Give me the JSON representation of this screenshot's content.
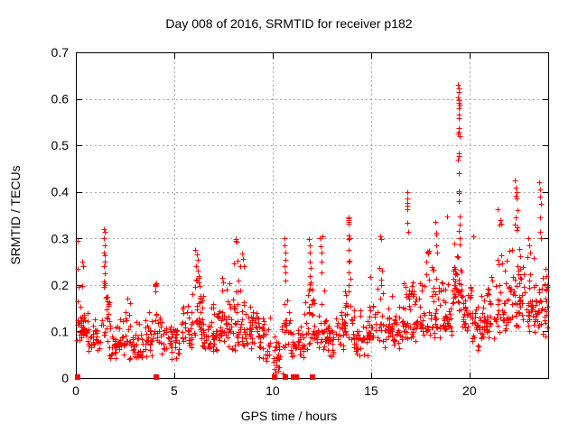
{
  "chart_data": {
    "type": "scatter",
    "title": "Day 008 of 2016, SRMTID for receiver p182",
    "xlabel": "GPS time / hours",
    "ylabel": "SRMTID / TECUs",
    "xlim": [
      0,
      24
    ],
    "ylim": [
      0,
      0.7
    ],
    "xticks": [
      0,
      5,
      10,
      15,
      20
    ],
    "xtick_labels": [
      "0",
      "5",
      "10",
      "15",
      "20"
    ],
    "yticks": [
      0,
      0.1,
      0.2,
      0.3,
      0.4,
      0.5,
      0.6,
      0.7
    ],
    "ytick_labels": [
      "0",
      "0.1",
      "0.2",
      "0.3",
      "0.4",
      "0.5",
      "0.6",
      "0.7"
    ],
    "grid": true,
    "legend": false,
    "marker": "plus",
    "zero_marker": "filled-square",
    "colors": {
      "marker": "#ff0000",
      "grid": "#a8a8a8",
      "border": "#000000",
      "background": "#ffffff"
    },
    "seed": 20160108,
    "band_segments": [
      [
        0.03,
        0.6,
        40,
        0.07,
        0.175,
        0.11
      ],
      [
        0.6,
        1.3,
        30,
        0.045,
        0.13,
        0.08
      ],
      [
        1.3,
        1.7,
        20,
        0.06,
        0.19,
        0.11
      ],
      [
        1.7,
        2.2,
        28,
        0.035,
        0.12,
        0.07
      ],
      [
        2.2,
        3.0,
        40,
        0.035,
        0.165,
        0.08
      ],
      [
        3.0,
        3.6,
        30,
        0.03,
        0.13,
        0.07
      ],
      [
        3.6,
        4.3,
        34,
        0.04,
        0.16,
        0.09
      ],
      [
        4.3,
        5.3,
        44,
        0.03,
        0.135,
        0.075
      ],
      [
        5.3,
        5.9,
        30,
        0.045,
        0.16,
        0.09
      ],
      [
        5.9,
        6.5,
        40,
        0.06,
        0.245,
        0.13
      ],
      [
        6.5,
        7.2,
        40,
        0.045,
        0.165,
        0.09
      ],
      [
        7.2,
        7.7,
        30,
        0.06,
        0.21,
        0.11
      ],
      [
        7.7,
        8.4,
        40,
        0.05,
        0.245,
        0.11
      ],
      [
        8.4,
        9.3,
        52,
        0.05,
        0.18,
        0.1
      ],
      [
        9.3,
        9.9,
        30,
        0.03,
        0.14,
        0.075
      ],
      [
        9.9,
        10.45,
        18,
        0.012,
        0.1,
        0.045
      ],
      [
        10.45,
        10.9,
        24,
        0.04,
        0.21,
        0.1
      ],
      [
        10.9,
        11.6,
        32,
        0.03,
        0.125,
        0.07
      ],
      [
        11.6,
        12.1,
        28,
        0.05,
        0.22,
        0.11
      ],
      [
        12.1,
        12.7,
        32,
        0.05,
        0.2,
        0.1
      ],
      [
        12.7,
        13.4,
        36,
        0.04,
        0.165,
        0.09
      ],
      [
        13.4,
        14.05,
        36,
        0.06,
        0.25,
        0.12
      ],
      [
        14.05,
        14.9,
        44,
        0.04,
        0.155,
        0.085
      ],
      [
        14.9,
        15.6,
        36,
        0.06,
        0.235,
        0.11
      ],
      [
        15.6,
        16.5,
        48,
        0.055,
        0.185,
        0.105
      ],
      [
        16.5,
        17.1,
        34,
        0.07,
        0.23,
        0.12
      ],
      [
        17.1,
        17.9,
        44,
        0.07,
        0.23,
        0.12
      ],
      [
        17.9,
        18.7,
        44,
        0.08,
        0.26,
        0.13
      ],
      [
        18.7,
        19.1,
        24,
        0.08,
        0.24,
        0.13
      ],
      [
        19.1,
        19.65,
        40,
        0.13,
        0.3,
        0.19
      ],
      [
        19.65,
        20.1,
        28,
        0.08,
        0.22,
        0.14
      ],
      [
        20.1,
        20.7,
        34,
        0.05,
        0.19,
        0.11
      ],
      [
        20.7,
        21.4,
        40,
        0.08,
        0.24,
        0.13
      ],
      [
        21.4,
        22.0,
        38,
        0.09,
        0.28,
        0.15
      ],
      [
        22.0,
        22.7,
        44,
        0.1,
        0.3,
        0.17
      ],
      [
        22.7,
        23.4,
        40,
        0.09,
        0.28,
        0.15
      ],
      [
        23.4,
        23.98,
        34,
        0.08,
        0.235,
        0.14
      ]
    ],
    "feature_points": [
      [
        0.07,
        0.295
      ],
      [
        0.1,
        0.235
      ],
      [
        0.16,
        0.195
      ],
      [
        0.3,
        0.198
      ],
      [
        0.33,
        0.25
      ],
      [
        0.36,
        0.24
      ],
      [
        1.42,
        0.32
      ],
      [
        1.45,
        0.315
      ],
      [
        1.44,
        0.3
      ],
      [
        1.46,
        0.285
      ],
      [
        1.43,
        0.27
      ],
      [
        1.45,
        0.263
      ],
      [
        1.47,
        0.25
      ],
      [
        1.44,
        0.24
      ],
      [
        1.46,
        0.225
      ],
      [
        1.43,
        0.207
      ],
      [
        1.45,
        0.2
      ],
      [
        1.44,
        0.196
      ],
      [
        1.46,
        0.203
      ],
      [
        2.6,
        0.17
      ],
      [
        2.75,
        0.16
      ],
      [
        4.02,
        0.2
      ],
      [
        4.05,
        0.201
      ],
      [
        4.04,
        0.197
      ],
      [
        4.07,
        0.203
      ],
      [
        4.05,
        0.186
      ],
      [
        6.08,
        0.275
      ],
      [
        6.15,
        0.265
      ],
      [
        6.2,
        0.254
      ],
      [
        6.12,
        0.24
      ],
      [
        6.18,
        0.23
      ],
      [
        6.26,
        0.22
      ],
      [
        6.1,
        0.212
      ],
      [
        6.22,
        0.205
      ],
      [
        7.45,
        0.215
      ],
      [
        7.5,
        0.205
      ],
      [
        8.1,
        0.295
      ],
      [
        8.14,
        0.298
      ],
      [
        8.17,
        0.292
      ],
      [
        8.2,
        0.252
      ],
      [
        8.05,
        0.246
      ],
      [
        8.45,
        0.268
      ],
      [
        8.5,
        0.255
      ],
      [
        8.55,
        0.24
      ],
      [
        10.05,
        0.035
      ],
      [
        10.1,
        0.02
      ],
      [
        10.15,
        0.012
      ],
      [
        10.2,
        0.028
      ],
      [
        10.26,
        0.05
      ],
      [
        10.3,
        0.015
      ],
      [
        10.5,
        0.01
      ],
      [
        10.58,
        0.3
      ],
      [
        10.62,
        0.285
      ],
      [
        10.65,
        0.27
      ],
      [
        10.63,
        0.254
      ],
      [
        10.6,
        0.24
      ],
      [
        10.66,
        0.226
      ],
      [
        10.64,
        0.21
      ],
      [
        11.85,
        0.298
      ],
      [
        11.88,
        0.285
      ],
      [
        11.9,
        0.27
      ],
      [
        11.87,
        0.25
      ],
      [
        11.92,
        0.236
      ],
      [
        11.9,
        0.22
      ],
      [
        11.93,
        0.205
      ],
      [
        12.4,
        0.3
      ],
      [
        12.43,
        0.284
      ],
      [
        12.46,
        0.27
      ],
      [
        12.5,
        0.25
      ],
      [
        12.48,
        0.226
      ],
      [
        12.55,
        0.305
      ],
      [
        13.84,
        0.346
      ],
      [
        13.87,
        0.343
      ],
      [
        13.85,
        0.339
      ],
      [
        13.86,
        0.335
      ],
      [
        13.88,
        0.331
      ],
      [
        13.85,
        0.306
      ],
      [
        13.87,
        0.299
      ],
      [
        13.84,
        0.276
      ],
      [
        13.86,
        0.25
      ],
      [
        13.85,
        0.226
      ],
      [
        13.87,
        0.2
      ],
      [
        13.84,
        0.186
      ],
      [
        13.9,
        0.3
      ],
      [
        13.92,
        0.252
      ],
      [
        15.45,
        0.305
      ],
      [
        15.5,
        0.298
      ],
      [
        15.4,
        0.236
      ],
      [
        15.56,
        0.23
      ],
      [
        15.5,
        0.212
      ],
      [
        16.82,
        0.4
      ],
      [
        16.85,
        0.386
      ],
      [
        16.84,
        0.376
      ],
      [
        16.86,
        0.37
      ],
      [
        16.83,
        0.363
      ],
      [
        16.85,
        0.333
      ],
      [
        16.87,
        0.315
      ],
      [
        17.85,
        0.272
      ],
      [
        17.9,
        0.27
      ],
      [
        17.88,
        0.268
      ],
      [
        17.92,
        0.274
      ],
      [
        17.8,
        0.25
      ],
      [
        18.28,
        0.335
      ],
      [
        18.3,
        0.312
      ],
      [
        18.32,
        0.308
      ],
      [
        18.3,
        0.286
      ],
      [
        18.34,
        0.27
      ],
      [
        18.85,
        0.347
      ],
      [
        19.42,
        0.63
      ],
      [
        19.45,
        0.622
      ],
      [
        19.47,
        0.615
      ],
      [
        19.43,
        0.603
      ],
      [
        19.46,
        0.598
      ],
      [
        19.44,
        0.592
      ],
      [
        19.48,
        0.588
      ],
      [
        19.45,
        0.58
      ],
      [
        19.46,
        0.567
      ],
      [
        19.44,
        0.558
      ],
      [
        19.47,
        0.537
      ],
      [
        19.45,
        0.53
      ],
      [
        19.43,
        0.525
      ],
      [
        19.48,
        0.52
      ],
      [
        19.44,
        0.483
      ],
      [
        19.46,
        0.477
      ],
      [
        19.43,
        0.47
      ],
      [
        19.45,
        0.44
      ],
      [
        19.44,
        0.402
      ],
      [
        19.47,
        0.398
      ],
      [
        19.45,
        0.38
      ],
      [
        19.5,
        0.347
      ],
      [
        19.48,
        0.33
      ],
      [
        19.46,
        0.316
      ],
      [
        19.5,
        0.3
      ],
      [
        19.52,
        0.287
      ],
      [
        20.2,
        0.305
      ],
      [
        21.45,
        0.363
      ],
      [
        21.55,
        0.34
      ],
      [
        21.5,
        0.33
      ],
      [
        21.62,
        0.332
      ],
      [
        22.3,
        0.425
      ],
      [
        22.35,
        0.41
      ],
      [
        22.4,
        0.4
      ],
      [
        22.33,
        0.392
      ],
      [
        22.38,
        0.385
      ],
      [
        22.42,
        0.36
      ],
      [
        22.35,
        0.345
      ],
      [
        22.3,
        0.33
      ],
      [
        22.45,
        0.323
      ],
      [
        22.4,
        0.318
      ],
      [
        22.95,
        0.26
      ],
      [
        23.0,
        0.3
      ],
      [
        23.05,
        0.285
      ],
      [
        23.1,
        0.27
      ],
      [
        23.55,
        0.42
      ],
      [
        23.6,
        0.405
      ],
      [
        23.58,
        0.39
      ],
      [
        23.62,
        0.375
      ],
      [
        23.57,
        0.345
      ],
      [
        23.6,
        0.315
      ],
      [
        23.65,
        0.3
      ],
      [
        23.88,
        0.235
      ],
      [
        23.93,
        0.22
      ],
      [
        23.97,
        0.2
      ],
      [
        23.91,
        0.19
      ]
    ],
    "zero_square_hours": [
      0.08,
      4.1,
      10.1,
      10.65,
      11.05,
      11.18,
      12.0
    ]
  }
}
